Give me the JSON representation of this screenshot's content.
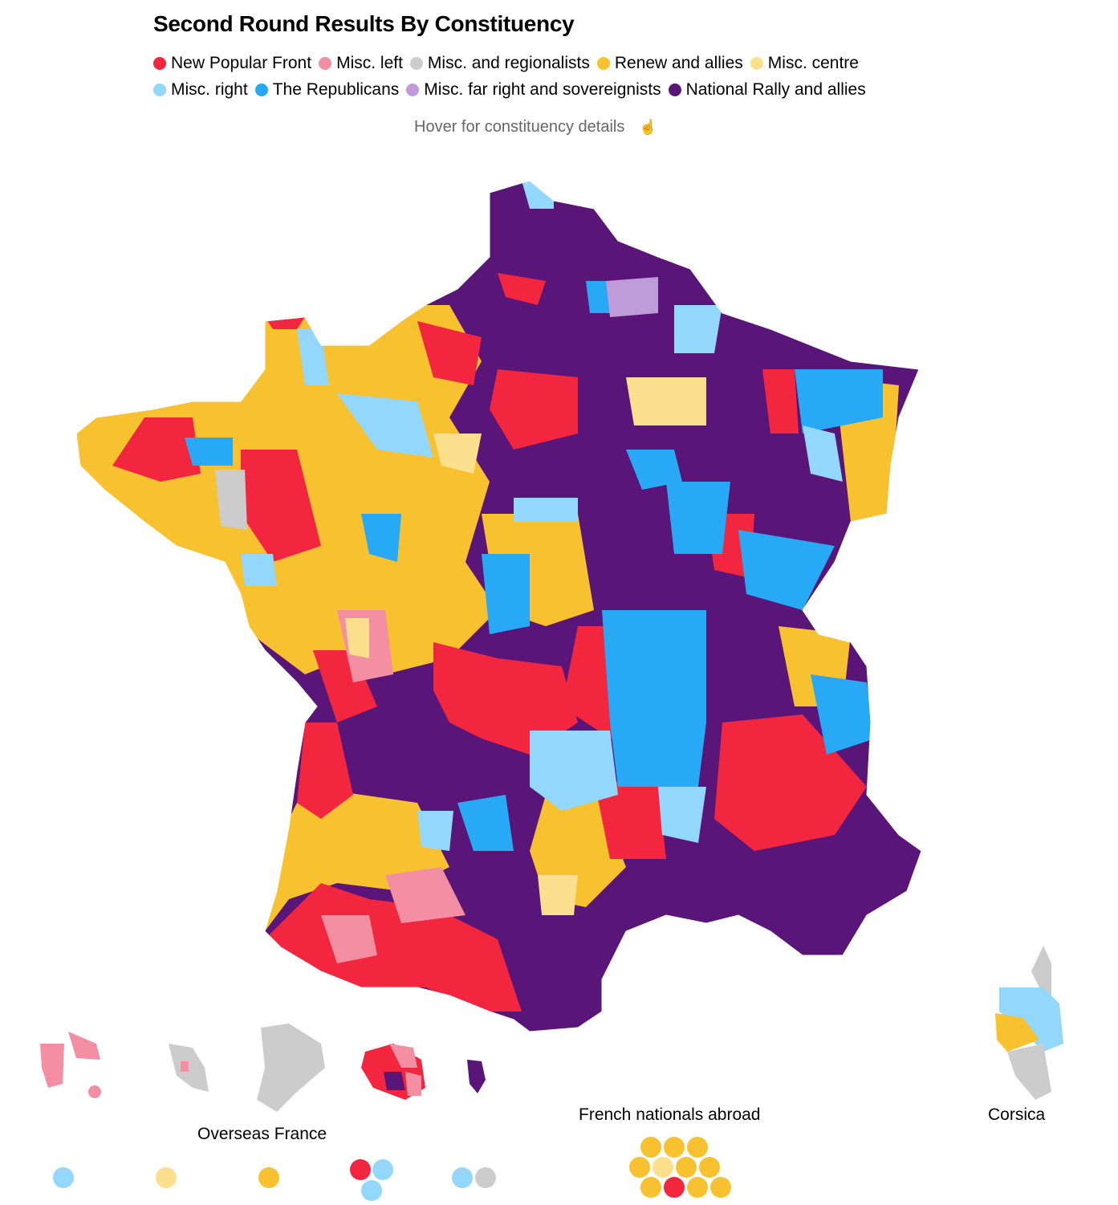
{
  "title": "Second Round Results By Constituency",
  "legend": [
    {
      "label": "New Popular Front",
      "color": "#f3263f"
    },
    {
      "label": "Misc. left",
      "color": "#f48fa3"
    },
    {
      "label": "Misc. and regionalists",
      "color": "#cccccc"
    },
    {
      "label": "Renew and allies",
      "color": "#f8c12f"
    },
    {
      "label": "Misc. centre",
      "color": "#fce08e"
    },
    {
      "label": "Misc. right",
      "color": "#93d8fc"
    },
    {
      "label": "The Republicans",
      "color": "#27a9f5"
    },
    {
      "label": "Misc. far right and sovereignists",
      "color": "#bf9bd9"
    },
    {
      "label": "National Rally and allies",
      "color": "#591577"
    }
  ],
  "hover_hint": "Hover for constituency details",
  "labels": {
    "overseas": "Overseas France",
    "abroad": "French nationals abroad",
    "corsica": "Corsica"
  },
  "overseas_dots": [
    [
      "Misc. right"
    ],
    [
      "Misc. centre"
    ],
    [
      "Renew and allies"
    ],
    [
      "New Popular Front",
      "Misc. right",
      "Misc. right"
    ],
    [
      "Misc. right",
      "Misc. and regionalists"
    ]
  ],
  "abroad_dots": [
    "Renew and allies",
    "Renew and allies",
    "Renew and allies",
    "Renew and allies",
    "Misc. centre",
    "Renew and allies",
    "Renew and allies",
    "Renew and allies",
    "New Popular Front",
    "Renew and allies",
    "Renew and allies"
  ]
}
